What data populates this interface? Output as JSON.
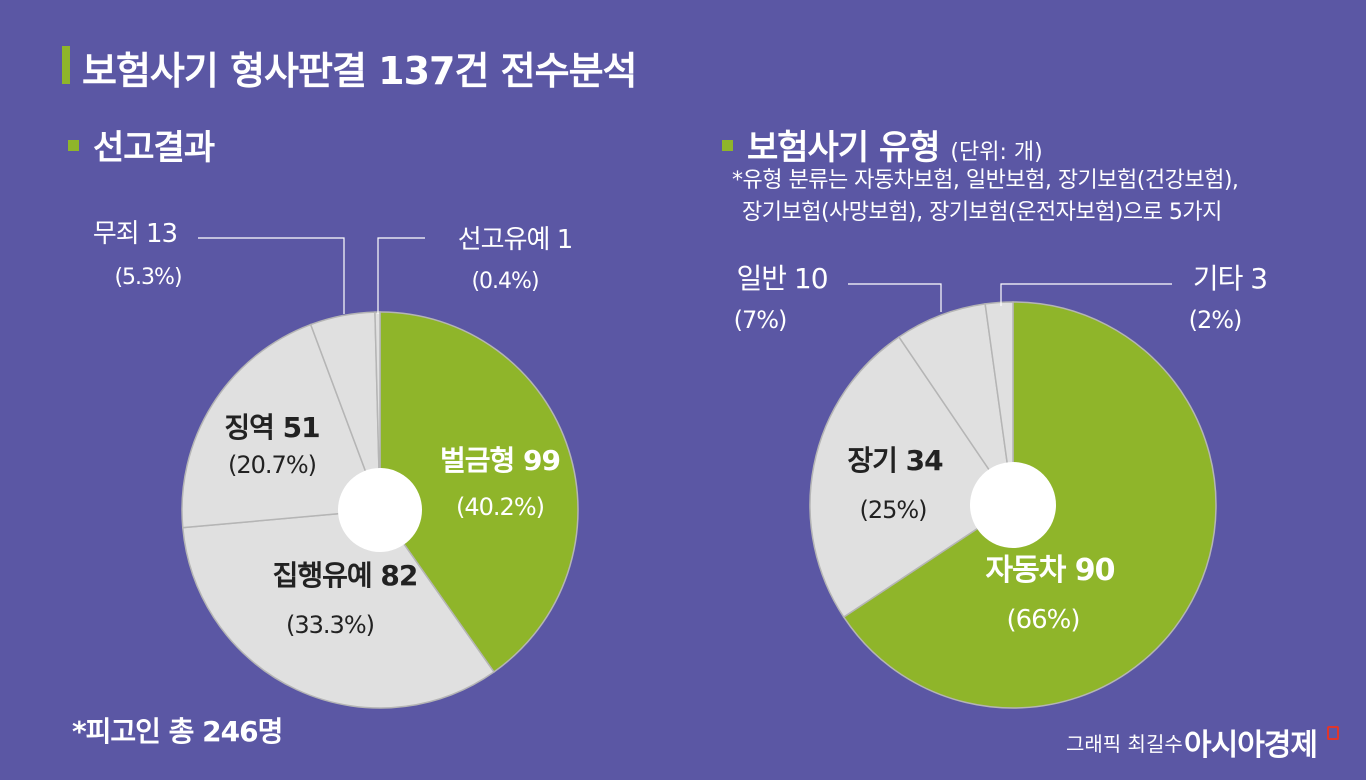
{
  "title": "보험사기 형사판결 137건 전수분석",
  "left_section": {
    "title": "선고결과"
  },
  "right_section": {
    "title": "보험사기 유형",
    "unit": "(단위: 개)",
    "note_line1": "*유형 분류는 자동차보험, 일반보험, 장기보험(건강보험),",
    "note_line2": "장기보험(사망보험), 장기보험(운전자보험)으로 5가지"
  },
  "footer": {
    "total": "*피고인 총 246명",
    "credit": "그래픽 최길수",
    "brand": "아시아경제"
  },
  "colors": {
    "background": "#5b57a4",
    "accent": "#8fb52a",
    "slice": "#e0e0e0",
    "separator": "#b5b5b5"
  },
  "chart_data": [
    {
      "type": "pie",
      "title": "선고결과",
      "slices": [
        {
          "name": "벌금형",
          "value": 99,
          "value_label": "벌금형 99",
          "pct_label": "(40.2%)"
        },
        {
          "name": "집행유예",
          "value": 82,
          "value_label": "집행유예 82",
          "pct_label": "(33.3%)"
        },
        {
          "name": "징역",
          "value": 51,
          "value_label": "징역 51",
          "pct_label": "(20.7%)"
        },
        {
          "name": "무죄",
          "value": 13,
          "value_label": "무죄 13",
          "pct_label": "(5.3%)"
        },
        {
          "name": "선고유예",
          "value": 1,
          "value_label": "선고유예 1",
          "pct_label": "(0.4%)"
        }
      ]
    },
    {
      "type": "pie",
      "title": "보험사기 유형",
      "slices": [
        {
          "name": "자동차",
          "value": 90,
          "value_label": "자동차 90",
          "pct_label": "(66%)"
        },
        {
          "name": "장기",
          "value": 34,
          "value_label": "장기 34",
          "pct_label": "(25%)"
        },
        {
          "name": "일반",
          "value": 10,
          "value_label": "일반 10",
          "pct_label": "(7%)"
        },
        {
          "name": "기타",
          "value": 3,
          "value_label": "기타 3",
          "pct_label": "(2%)"
        }
      ]
    }
  ]
}
